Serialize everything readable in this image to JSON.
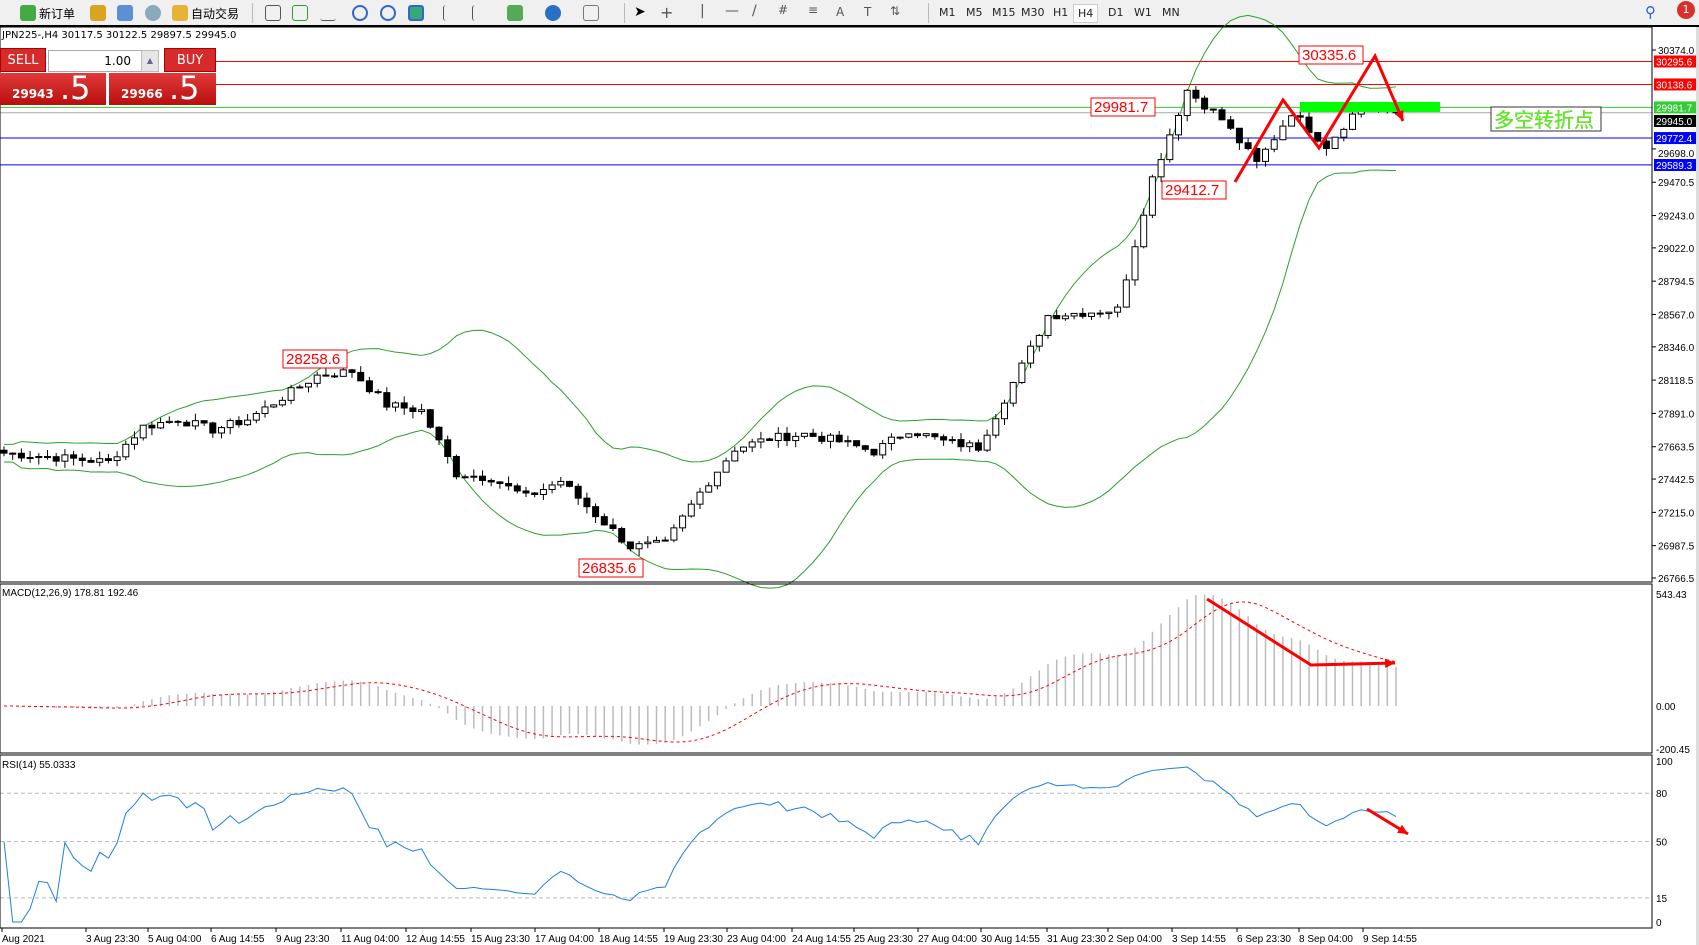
{
  "toolbar": {
    "new_order": "新订单",
    "auto_trading": "自动交易",
    "timeframes": [
      "M1",
      "M5",
      "M15",
      "M30",
      "H1",
      "H4",
      "D1",
      "W1",
      "MN"
    ],
    "active_timeframe": "H4",
    "notifications": "1"
  },
  "chart_header": "JPN225-,H4  30117.5 30122.5 29897.5 29945.0",
  "trade_panel": {
    "sell": "SELL",
    "buy": "BUY",
    "lot": "1.00",
    "sell_big": "29943",
    "sell_small": ".5",
    "buy_big": "29966",
    "buy_small": ".5",
    "color": "#d72a2a"
  },
  "price_axis": [
    "30374.0",
    "29698.0",
    "29470.5",
    "29243.0",
    "29022.0",
    "28794.5",
    "28567.0",
    "28346.0",
    "28118.5",
    "27891.0",
    "27663.5",
    "27442.5",
    "27215.0",
    "26987.5",
    "26766.5"
  ],
  "levels": [
    {
      "value": "30295.6",
      "color": "#ff0000"
    },
    {
      "value": "30138.6",
      "color": "#ff0000"
    },
    {
      "value": "29981.7",
      "color": "#33cc33"
    },
    {
      "value": "29945.0",
      "color": "#000000"
    },
    {
      "value": "29772.4",
      "color": "#0000ff"
    },
    {
      "value": "29589.3",
      "color": "#0000ff"
    }
  ],
  "annotations": {
    "high1": "28258.6",
    "low1": "26835.6",
    "level1": "29981.7",
    "low2": "29412.7",
    "high2": "30335.6",
    "turning_point": "多空转折点"
  },
  "macd": {
    "label": "MACD(12,26,9) 178.81 192.46",
    "axis": [
      "543.43",
      "0.00",
      "-200.45"
    ]
  },
  "rsi": {
    "label": "RSI(14) 55.0333",
    "axis": [
      "100",
      "80",
      "50",
      "15",
      "0"
    ]
  },
  "time_axis": [
    "Aug 2021",
    "3 Aug 23:30",
    "5 Aug 04:00",
    "6 Aug 14:55",
    "9 Aug 23:30",
    "11 Aug 04:00",
    "12 Aug 14:55",
    "15 Aug 23:30",
    "17 Aug 04:00",
    "18 Aug 14:55",
    "19 Aug 23:30",
    "23 Aug 04:00",
    "24 Aug 14:55",
    "25 Aug 23:30",
    "27 Aug 04:00",
    "30 Aug 14:55",
    "31 Aug 23:30",
    "2 Sep 04:00",
    "3 Sep 14:55",
    "6 Sep 23:30",
    "8 Sep 04:00",
    "9 Sep 14:55"
  ],
  "chart_data": {
    "type": "candlestick",
    "symbol": "JPN225-",
    "timeframe": "H4",
    "ylim": [
      26766.5,
      30374.0
    ],
    "closes_every_4_bars": [
      27620,
      27600,
      27580,
      27560,
      27800,
      27850,
      27780,
      27850,
      28000,
      28150,
      28180,
      27950,
      27910,
      27480,
      27450,
      27320,
      27430,
      27200,
      26980,
      27000,
      27350,
      27650,
      27720,
      27750,
      27700,
      27630,
      27780,
      27700,
      27660,
      28100,
      28560,
      28580,
      28600,
      29500,
      30100,
      29900,
      29600,
      29950,
      29720,
      30000,
      29945
    ],
    "indicators": [
      "Bollinger Bands",
      "MACD(12,26,9)",
      "RSI(14)"
    ],
    "band_color": "#2ca02c",
    "macd_signal_color": "#ff0000",
    "rsi_color": "#1e7fe0"
  }
}
